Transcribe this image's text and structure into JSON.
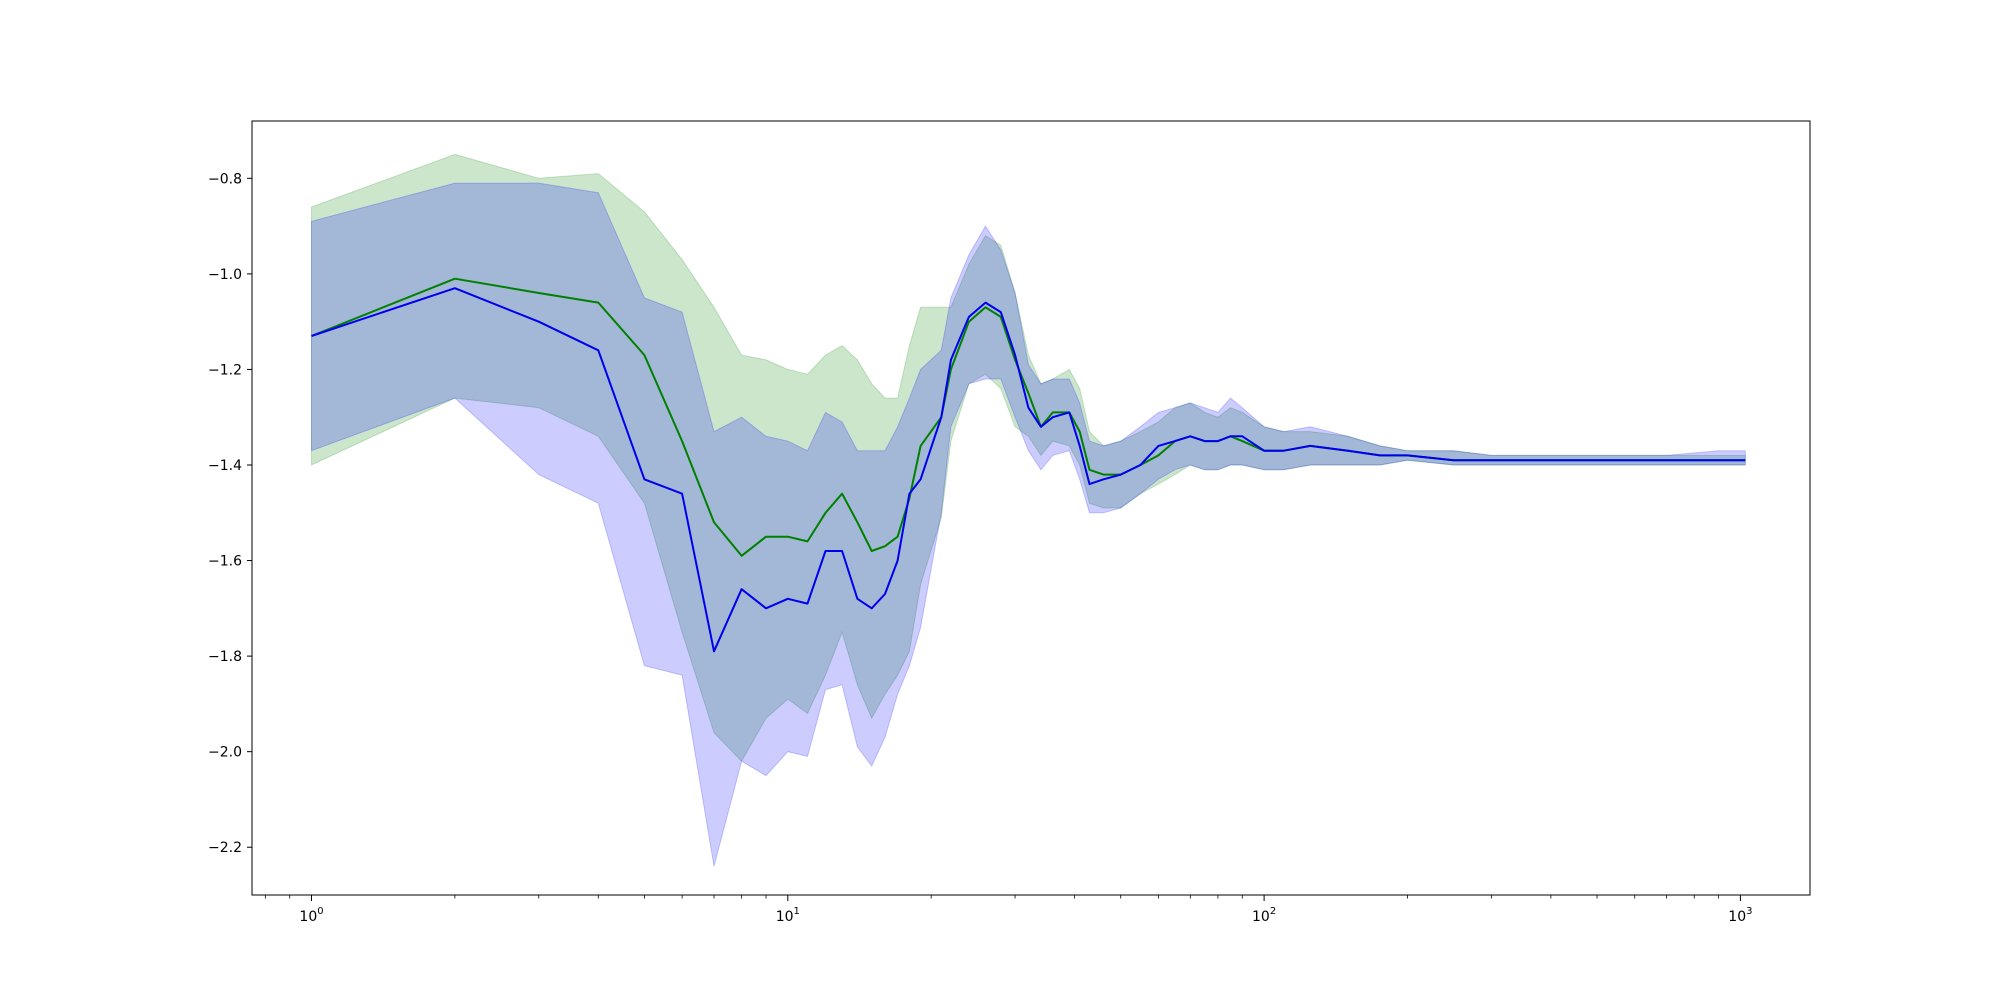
{
  "chart_data": {
    "type": "line",
    "title": "",
    "xlabel": "",
    "ylabel": "",
    "xscale": "log",
    "xlim": [
      0.75,
      1400
    ],
    "ylim": [
      -2.3,
      -0.68
    ],
    "grid": false,
    "x_ticks": [
      {
        "value": 1,
        "base": "10",
        "exp": "0"
      },
      {
        "value": 10,
        "base": "10",
        "exp": "1"
      },
      {
        "value": 100,
        "base": "10",
        "exp": "2"
      },
      {
        "value": 1000,
        "base": "10",
        "exp": "3"
      }
    ],
    "y_ticks": [
      {
        "value": -0.8,
        "label": "−0.8"
      },
      {
        "value": -1.0,
        "label": "−1.0"
      },
      {
        "value": -1.2,
        "label": "−1.2"
      },
      {
        "value": -1.4,
        "label": "−1.4"
      },
      {
        "value": -1.6,
        "label": "−1.6"
      },
      {
        "value": -1.8,
        "label": "−1.8"
      },
      {
        "value": -2.0,
        "label": "−2.0"
      },
      {
        "value": -2.2,
        "label": "−2.2"
      }
    ],
    "series": [
      {
        "color": "#008000",
        "band_color": "#008000",
        "band_opacity": 0.2,
        "points": [
          [
            1,
            -1.13,
            -0.86,
            -1.4
          ],
          [
            2,
            -1.01,
            -0.75,
            -1.26
          ],
          [
            3,
            -1.04,
            -0.8,
            -1.28
          ],
          [
            4,
            -1.06,
            -0.79,
            -1.34
          ],
          [
            5,
            -1.17,
            -0.87,
            -1.48
          ],
          [
            6,
            -1.35,
            -0.97,
            -1.75
          ],
          [
            7,
            -1.52,
            -1.07,
            -1.96
          ],
          [
            8,
            -1.59,
            -1.17,
            -2.02
          ],
          [
            9,
            -1.55,
            -1.18,
            -1.93
          ],
          [
            10,
            -1.55,
            -1.2,
            -1.89
          ],
          [
            11,
            -1.56,
            -1.21,
            -1.92
          ],
          [
            12,
            -1.5,
            -1.17,
            -1.84
          ],
          [
            13,
            -1.46,
            -1.15,
            -1.75
          ],
          [
            14,
            -1.52,
            -1.18,
            -1.86
          ],
          [
            15,
            -1.58,
            -1.23,
            -1.93
          ],
          [
            16,
            -1.57,
            -1.26,
            -1.88
          ],
          [
            17,
            -1.55,
            -1.26,
            -1.84
          ],
          [
            18,
            -1.47,
            -1.15,
            -1.79
          ],
          [
            19,
            -1.36,
            -1.07,
            -1.65
          ],
          [
            21,
            -1.3,
            -1.07,
            -1.51
          ],
          [
            22,
            -1.2,
            -1.07,
            -1.35
          ],
          [
            24,
            -1.1,
            -0.98,
            -1.23
          ],
          [
            26,
            -1.07,
            -0.92,
            -1.21
          ],
          [
            28,
            -1.09,
            -0.94,
            -1.24
          ],
          [
            30,
            -1.18,
            -1.04,
            -1.32
          ],
          [
            32,
            -1.25,
            -1.17,
            -1.34
          ],
          [
            34,
            -1.32,
            -1.23,
            -1.38
          ],
          [
            36,
            -1.29,
            -1.22,
            -1.35
          ],
          [
            39,
            -1.29,
            -1.2,
            -1.36
          ],
          [
            41,
            -1.33,
            -1.24,
            -1.4
          ],
          [
            43,
            -1.41,
            -1.33,
            -1.48
          ],
          [
            46,
            -1.42,
            -1.36,
            -1.49
          ],
          [
            50,
            -1.42,
            -1.35,
            -1.49
          ],
          [
            55,
            -1.4,
            -1.33,
            -1.46
          ],
          [
            60,
            -1.38,
            -1.31,
            -1.44
          ],
          [
            65,
            -1.35,
            -1.28,
            -1.42
          ],
          [
            70,
            -1.34,
            -1.27,
            -1.4
          ],
          [
            75,
            -1.35,
            -1.29,
            -1.41
          ],
          [
            80,
            -1.35,
            -1.3,
            -1.41
          ],
          [
            85,
            -1.34,
            -1.28,
            -1.4
          ],
          [
            90,
            -1.35,
            -1.29,
            -1.4
          ],
          [
            100,
            -1.37,
            -1.32,
            -1.41
          ],
          [
            110,
            -1.37,
            -1.33,
            -1.41
          ],
          [
            125,
            -1.36,
            -1.33,
            -1.4
          ],
          [
            150,
            -1.37,
            -1.34,
            -1.4
          ],
          [
            175,
            -1.38,
            -1.36,
            -1.4
          ],
          [
            200,
            -1.38,
            -1.37,
            -1.39
          ],
          [
            250,
            -1.39,
            -1.37,
            -1.4
          ],
          [
            300,
            -1.39,
            -1.38,
            -1.4
          ],
          [
            400,
            -1.39,
            -1.38,
            -1.4
          ],
          [
            500,
            -1.39,
            -1.38,
            -1.4
          ],
          [
            700,
            -1.39,
            -1.38,
            -1.4
          ],
          [
            900,
            -1.39,
            -1.38,
            -1.4
          ],
          [
            1024,
            -1.39,
            -1.38,
            -1.4
          ]
        ]
      },
      {
        "color": "#0000ee",
        "band_color": "#0000ff",
        "band_opacity": 0.2,
        "points": [
          [
            1,
            -1.13,
            -0.89,
            -1.37
          ],
          [
            2,
            -1.03,
            -0.81,
            -1.26
          ],
          [
            3,
            -1.1,
            -0.81,
            -1.42
          ],
          [
            4,
            -1.16,
            -0.83,
            -1.48
          ],
          [
            5,
            -1.43,
            -1.05,
            -1.82
          ],
          [
            6,
            -1.46,
            -1.08,
            -1.84
          ],
          [
            7,
            -1.79,
            -1.33,
            -2.24
          ],
          [
            8,
            -1.66,
            -1.3,
            -2.02
          ],
          [
            9,
            -1.7,
            -1.34,
            -2.05
          ],
          [
            10,
            -1.68,
            -1.35,
            -2.0
          ],
          [
            11,
            -1.69,
            -1.37,
            -2.01
          ],
          [
            12,
            -1.58,
            -1.29,
            -1.87
          ],
          [
            13,
            -1.58,
            -1.31,
            -1.86
          ],
          [
            14,
            -1.68,
            -1.37,
            -1.99
          ],
          [
            15,
            -1.7,
            -1.37,
            -2.03
          ],
          [
            16,
            -1.67,
            -1.37,
            -1.97
          ],
          [
            17,
            -1.6,
            -1.32,
            -1.88
          ],
          [
            18,
            -1.46,
            -1.26,
            -1.82
          ],
          [
            19,
            -1.43,
            -1.2,
            -1.74
          ],
          [
            21,
            -1.3,
            -1.16,
            -1.5
          ],
          [
            22,
            -1.18,
            -1.05,
            -1.32
          ],
          [
            24,
            -1.09,
            -0.96,
            -1.23
          ],
          [
            26,
            -1.06,
            -0.9,
            -1.22
          ],
          [
            28,
            -1.08,
            -0.95,
            -1.22
          ],
          [
            30,
            -1.17,
            -1.04,
            -1.3
          ],
          [
            32,
            -1.28,
            -1.19,
            -1.37
          ],
          [
            34,
            -1.32,
            -1.23,
            -1.41
          ],
          [
            36,
            -1.3,
            -1.22,
            -1.38
          ],
          [
            39,
            -1.29,
            -1.22,
            -1.37
          ],
          [
            41,
            -1.36,
            -1.27,
            -1.43
          ],
          [
            43,
            -1.44,
            -1.35,
            -1.5
          ],
          [
            46,
            -1.43,
            -1.36,
            -1.5
          ],
          [
            50,
            -1.42,
            -1.35,
            -1.49
          ],
          [
            55,
            -1.4,
            -1.32,
            -1.46
          ],
          [
            60,
            -1.36,
            -1.29,
            -1.43
          ],
          [
            65,
            -1.35,
            -1.28,
            -1.41
          ],
          [
            70,
            -1.34,
            -1.27,
            -1.4
          ],
          [
            75,
            -1.35,
            -1.28,
            -1.41
          ],
          [
            80,
            -1.35,
            -1.29,
            -1.41
          ],
          [
            85,
            -1.34,
            -1.26,
            -1.4
          ],
          [
            90,
            -1.34,
            -1.28,
            -1.4
          ],
          [
            100,
            -1.37,
            -1.32,
            -1.41
          ],
          [
            110,
            -1.37,
            -1.33,
            -1.41
          ],
          [
            125,
            -1.36,
            -1.32,
            -1.4
          ],
          [
            150,
            -1.37,
            -1.34,
            -1.4
          ],
          [
            175,
            -1.38,
            -1.36,
            -1.4
          ],
          [
            200,
            -1.38,
            -1.37,
            -1.39
          ],
          [
            250,
            -1.39,
            -1.37,
            -1.4
          ],
          [
            300,
            -1.39,
            -1.38,
            -1.4
          ],
          [
            400,
            -1.39,
            -1.38,
            -1.4
          ],
          [
            500,
            -1.39,
            -1.38,
            -1.4
          ],
          [
            700,
            -1.39,
            -1.38,
            -1.4
          ],
          [
            900,
            -1.39,
            -1.37,
            -1.4
          ],
          [
            1024,
            -1.39,
            -1.37,
            -1.4
          ]
        ]
      }
    ]
  }
}
